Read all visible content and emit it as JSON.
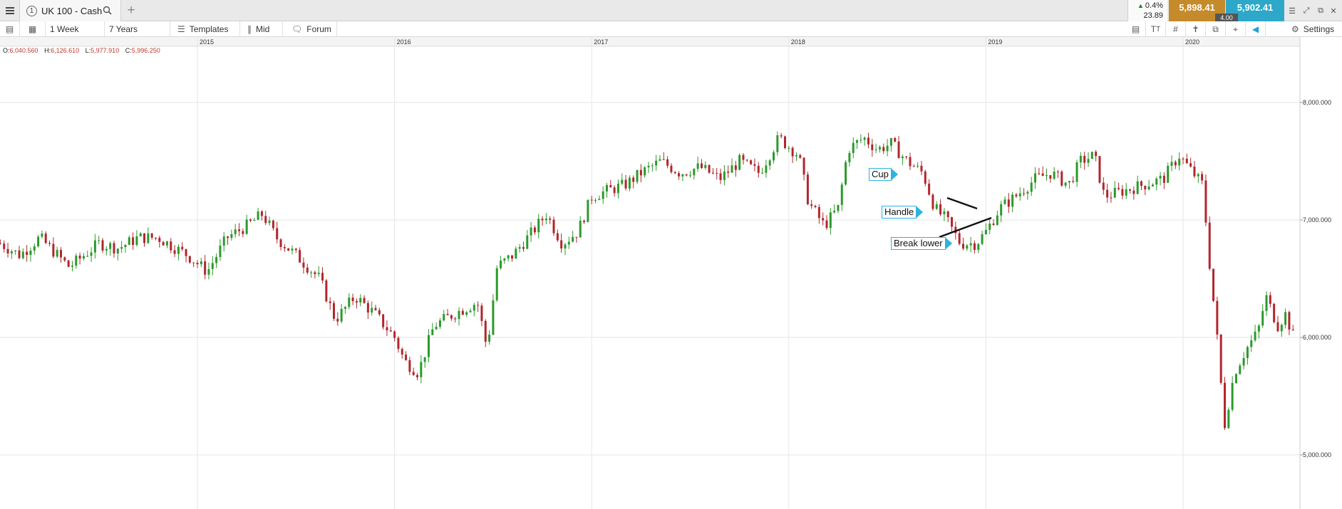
{
  "tab": {
    "number": "1",
    "title": "UK 100 - Cash"
  },
  "quote": {
    "change_pct": "0.4%",
    "change_pts": "23.89",
    "sell": "5,898.41",
    "buy": "5,902.41",
    "spread": "4.00"
  },
  "toolbar": {
    "interval": "1 Week",
    "range": "7 Years",
    "templates": "Templates",
    "price_type": "Mid",
    "forum": "Forum",
    "settings": "Settings"
  },
  "ohlc": {
    "o_label": "O:",
    "o": "6,040.560",
    "h_label": "H:",
    "h": "6,126.610",
    "l_label": "L:",
    "l": "5,977.910",
    "c_label": "C:",
    "c": "5,996.250"
  },
  "annotations": {
    "cup": "Cup",
    "handle": "Handle",
    "break": "Break lower"
  },
  "colors": {
    "up": "#2b9a2b",
    "down": "#b1262c",
    "accent": "#2db3e0",
    "sell": "#c58a2a",
    "buy": "#2da8c9"
  },
  "chart_data": {
    "type": "candlestick",
    "instrument": "UK 100 - Cash",
    "interval": "1 Week",
    "x_ticks": [
      "2015",
      "2016",
      "2017",
      "2018",
      "2019",
      "2020"
    ],
    "y_ticks": [
      "8,000.000",
      "7,000.000",
      "6,000.000",
      "5,000.000"
    ],
    "y_tick_values": [
      8000,
      7000,
      6000,
      5000
    ],
    "ylim": [
      4700,
      8450
    ],
    "xlim": [
      2014.0,
      2020.6
    ],
    "grid": true,
    "close_path": [
      [
        2014.0,
        6800
      ],
      [
        2014.1,
        6700
      ],
      [
        2014.2,
        6850
      ],
      [
        2014.35,
        6600
      ],
      [
        2014.5,
        6800
      ],
      [
        2014.6,
        6760
      ],
      [
        2014.7,
        6850
      ],
      [
        2014.8,
        6850
      ],
      [
        2014.95,
        6700
      ],
      [
        2015.05,
        6560
      ],
      [
        2015.15,
        6850
      ],
      [
        2015.25,
        6950
      ],
      [
        2015.33,
        7050
      ],
      [
        2015.4,
        6850
      ],
      [
        2015.5,
        6700
      ],
      [
        2015.62,
        6500
      ],
      [
        2015.7,
        6150
      ],
      [
        2015.8,
        6350
      ],
      [
        2015.9,
        6200
      ],
      [
        2016.0,
        6000
      ],
      [
        2016.05,
        5800
      ],
      [
        2016.12,
        5700
      ],
      [
        2016.2,
        6100
      ],
      [
        2016.3,
        6200
      ],
      [
        2016.42,
        6300
      ],
      [
        2016.47,
        5900
      ],
      [
        2016.52,
        6600
      ],
      [
        2016.6,
        6700
      ],
      [
        2016.7,
        6900
      ],
      [
        2016.77,
        7050
      ],
      [
        2016.85,
        6800
      ],
      [
        2016.93,
        6900
      ],
      [
        2017.0,
        7200
      ],
      [
        2017.08,
        7250
      ],
      [
        2017.17,
        7300
      ],
      [
        2017.25,
        7400
      ],
      [
        2017.35,
        7500
      ],
      [
        2017.45,
        7400
      ],
      [
        2017.55,
        7450
      ],
      [
        2017.65,
        7350
      ],
      [
        2017.75,
        7500
      ],
      [
        2017.85,
        7400
      ],
      [
        2017.95,
        7700
      ],
      [
        2018.05,
        7550
      ],
      [
        2018.1,
        7150
      ],
      [
        2018.18,
        6950
      ],
      [
        2018.25,
        7100
      ],
      [
        2018.3,
        7600
      ],
      [
        2018.38,
        7700
      ],
      [
        2018.45,
        7600
      ],
      [
        2018.52,
        7650
      ],
      [
        2018.6,
        7500
      ],
      [
        2018.68,
        7400
      ],
      [
        2018.74,
        7100
      ],
      [
        2018.8,
        7000
      ],
      [
        2018.87,
        6800
      ],
      [
        2018.95,
        6800
      ],
      [
        2019.0,
        6900
      ],
      [
        2019.07,
        7100
      ],
      [
        2019.15,
        7200
      ],
      [
        2019.25,
        7350
      ],
      [
        2019.33,
        7400
      ],
      [
        2019.42,
        7300
      ],
      [
        2019.48,
        7500
      ],
      [
        2019.55,
        7550
      ],
      [
        2019.6,
        7200
      ],
      [
        2019.7,
        7250
      ],
      [
        2019.8,
        7300
      ],
      [
        2019.9,
        7350
      ],
      [
        2019.98,
        7550
      ],
      [
        2020.05,
        7400
      ],
      [
        2020.1,
        7300
      ],
      [
        2020.13,
        6700
      ],
      [
        2020.17,
        6050
      ],
      [
        2020.21,
        5250
      ],
      [
        2020.26,
        5700
      ],
      [
        2020.32,
        5900
      ],
      [
        2020.38,
        6050
      ],
      [
        2020.42,
        6350
      ],
      [
        2020.48,
        6100
      ],
      [
        2020.52,
        6200
      ],
      [
        2020.56,
        6000
      ]
    ]
  }
}
